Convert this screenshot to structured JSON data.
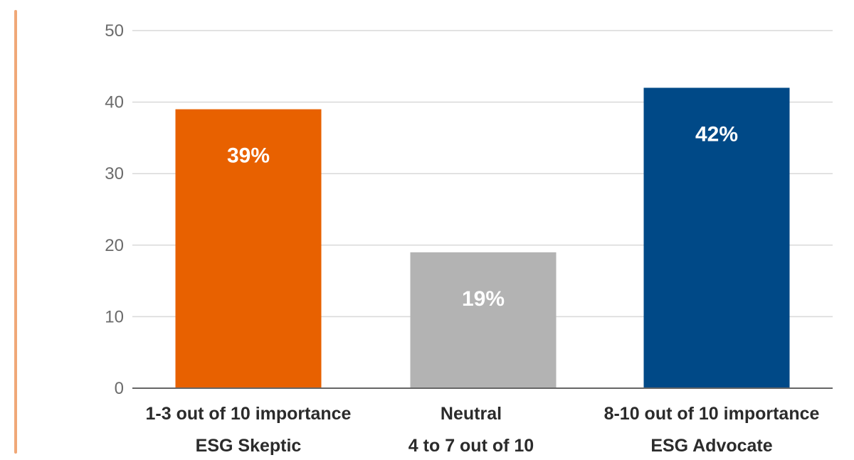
{
  "chart_data": {
    "type": "bar",
    "title": "",
    "xlabel": "",
    "ylabel": "",
    "ylim": [
      0,
      50
    ],
    "yticks": [
      0,
      10,
      20,
      30,
      40,
      50
    ],
    "grid": true,
    "categories": [
      {
        "lines": [
          "1-3 out of 10 importance",
          "ESG Skeptic"
        ]
      },
      {
        "lines": [
          "Neutral",
          "4 to 7 out of 10"
        ]
      },
      {
        "lines": [
          "8-10 out of 10 importance",
          "ESG Advocate"
        ]
      }
    ],
    "values": [
      39,
      19,
      42
    ],
    "data_labels": [
      "39%",
      "19%",
      "42%"
    ],
    "colors": [
      "#e86100",
      "#b3b3b3",
      "#004987"
    ]
  },
  "style": {
    "accent_rule_color": "#f0a877",
    "grid_color": "#d9d9d9",
    "axis_color": "#666666"
  }
}
